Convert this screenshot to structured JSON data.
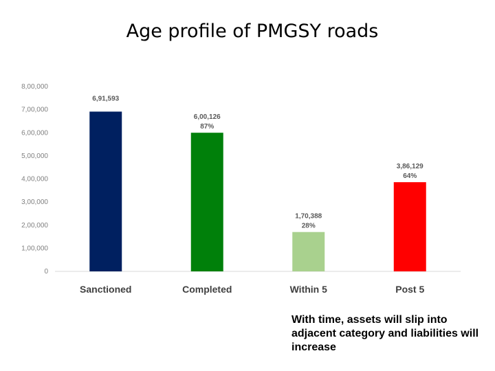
{
  "slide": {
    "title": "Age profile of PMGSY roads",
    "note": "With time, assets will slip into adjacent category and liabilities will increase"
  },
  "chart_data": {
    "type": "bar",
    "title": "",
    "xlabel": "",
    "ylabel": "",
    "categories": [
      "Sanctioned",
      "Completed",
      "Within 5",
      "Post 5"
    ],
    "values": [
      691593,
      600126,
      170388,
      386129
    ],
    "value_labels": [
      "6,91,593",
      "6,00,126",
      "1,70,388",
      "3,86,129"
    ],
    "percent_labels": [
      "",
      "87%",
      "28%",
      "64%"
    ],
    "colors": [
      "#002060",
      "#00800a",
      "#a9d18e",
      "#ff0000"
    ],
    "ylim": [
      0,
      800000
    ],
    "yticks": [
      0,
      100000,
      200000,
      300000,
      400000,
      500000,
      600000,
      700000,
      800000
    ],
    "ytick_labels": [
      "0",
      "1,00,000",
      "2,00,000",
      "3,00,000",
      "4,00,000",
      "5,00,000",
      "6,00,000",
      "7,00,000",
      "8,00,000"
    ],
    "grid": false,
    "legend": "none"
  }
}
